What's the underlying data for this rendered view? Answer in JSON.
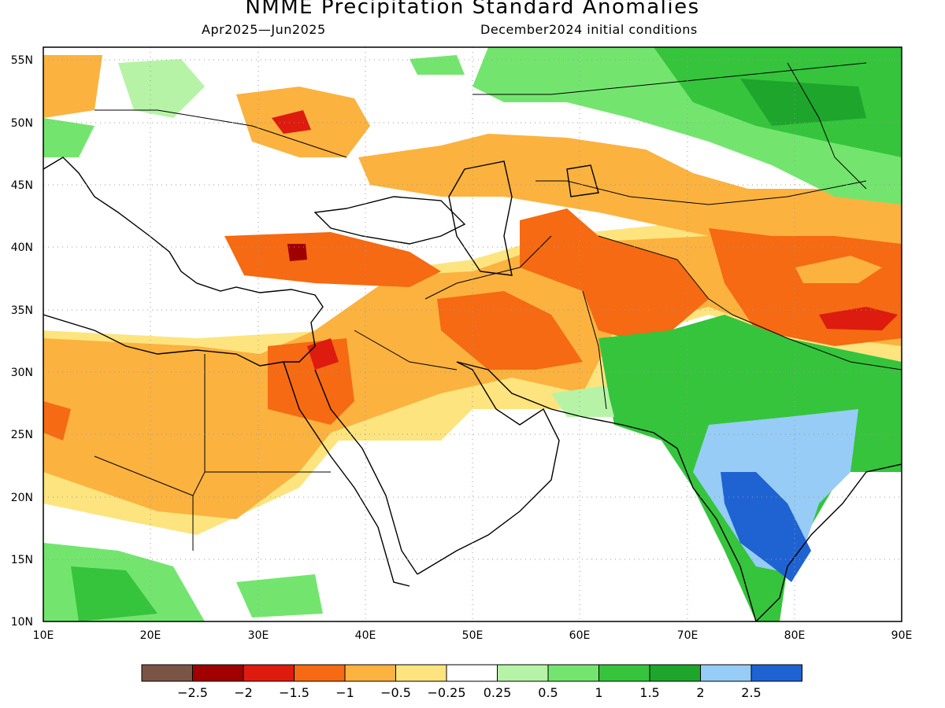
{
  "header": {
    "title": "NMME Precipitation Standard Anomalies",
    "period": "Apr2025—Jun2025",
    "init": "December2024 initial conditions"
  },
  "map": {
    "lon_range": [
      10,
      90
    ],
    "lat_range": [
      10,
      56
    ],
    "lon_ticks": [
      "10E",
      "20E",
      "30E",
      "40E",
      "50E",
      "60E",
      "70E",
      "80E",
      "90E"
    ],
    "lat_ticks": [
      "10N",
      "15N",
      "20N",
      "25N",
      "30N",
      "35N",
      "40N",
      "45N",
      "50N",
      "55N"
    ],
    "gridlines": "dotted"
  },
  "legend": {
    "colors": [
      "#7a5546",
      "#a00000",
      "#dd1b0f",
      "#f56a12",
      "#fbb23f",
      "#fde47f",
      "#ffffff",
      "#b6f3a6",
      "#73e56e",
      "#35c43c",
      "#1ea52c",
      "#96ccf5",
      "#1f63d2"
    ],
    "labels": [
      "−2.5",
      "−2",
      "−1.5",
      "−1",
      "−0.5",
      "−0.25",
      "0.25",
      "0.5",
      "1",
      "1.5",
      "2",
      "2.5"
    ]
  }
}
